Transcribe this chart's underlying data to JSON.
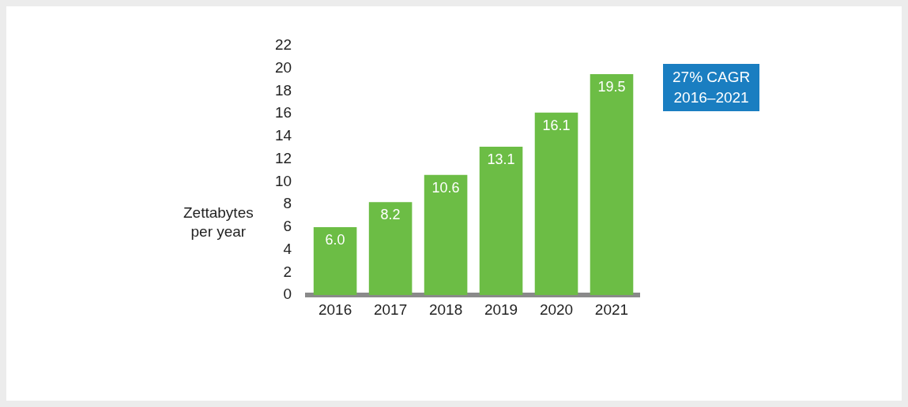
{
  "chart_data": {
    "type": "bar",
    "ylabel": "Zettabytes\nper year",
    "categories": [
      "2016",
      "2017",
      "2018",
      "2019",
      "2020",
      "2021"
    ],
    "values": [
      6.0,
      8.2,
      10.6,
      13.1,
      16.1,
      19.5
    ],
    "color": "#6cbd45",
    "ylim": [
      0,
      22
    ],
    "yticks": [
      0,
      2,
      4,
      6,
      8,
      10,
      12,
      14,
      16,
      18,
      20,
      22
    ],
    "grid": false,
    "legend": false,
    "value_labels": [
      "6.0",
      "8.2",
      "10.6",
      "13.1",
      "16.1",
      "19.5"
    ],
    "annotations": [
      "27% CAGR\n2016–2021"
    ]
  }
}
